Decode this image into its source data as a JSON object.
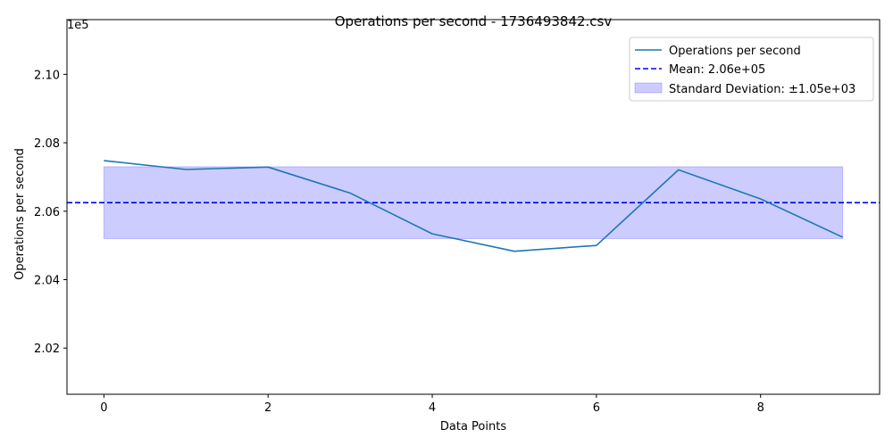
{
  "chart_data": {
    "type": "line",
    "title": "Operations per second - 1736493842.csv",
    "xlabel": "Data Points",
    "ylabel": "Operations per second",
    "offset_label": "1e5",
    "xlim": [
      -0.45,
      9.45
    ],
    "ylim": [
      200650,
      211600
    ],
    "x_ticks": [
      0,
      2,
      4,
      6,
      8
    ],
    "x_tick_labels": [
      "0",
      "2",
      "4",
      "6",
      "8"
    ],
    "y_ticks": [
      202000,
      204000,
      206000,
      208000,
      210000
    ],
    "y_tick_labels": [
      "2.02",
      "2.04",
      "2.06",
      "2.08",
      "2.10"
    ],
    "x": [
      0,
      1,
      2,
      3,
      4,
      5,
      6,
      7,
      8,
      9
    ],
    "series": [
      {
        "name": "Operations per second",
        "values": [
          207480,
          207220,
          207290,
          206530,
          205340,
          204830,
          205000,
          207210,
          206360,
          205240
        ],
        "color": "#1f77b4"
      }
    ],
    "mean": {
      "label": "Mean: 2.06e+05",
      "value": 206250,
      "color": "#0000ff"
    },
    "std_band": {
      "label": "Standard Deviation: ±1.05e+03",
      "low": 205200,
      "high": 207300,
      "color": "#0000ff"
    },
    "legend_position": "top-right",
    "grid": false
  }
}
